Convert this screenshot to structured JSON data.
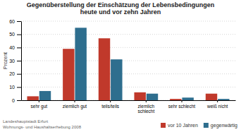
{
  "chart_data": {
    "type": "bar",
    "title": "Gegenüberstellung der Einschätzung der Lebensbedingungen\nheute und vor zehn Jahren",
    "ylabel": "Prozent",
    "categories": [
      "sehr gut",
      "ziemlich gut",
      "teils/teils",
      "ziemlich schlecht",
      "sehr schlecht",
      "weiß nicht"
    ],
    "series": [
      {
        "name": "vor 10 Jahren",
        "color": "#c0392b",
        "values": [
          3,
          39,
          47,
          6,
          1,
          5
        ]
      },
      {
        "name": "gegenwärtig",
        "color": "#2e6e8e",
        "values": [
          7,
          55,
          31,
          5,
          2,
          1
        ]
      }
    ],
    "ylim": [
      0,
      60
    ],
    "yticks": [
      0,
      10,
      20,
      30,
      40,
      50,
      60
    ],
    "grid": true,
    "legend": "bottom",
    "annotations": [
      "Landeshauptstadt Erfurt",
      "Wohnungs- und Haushaltserhebung 2008"
    ]
  }
}
